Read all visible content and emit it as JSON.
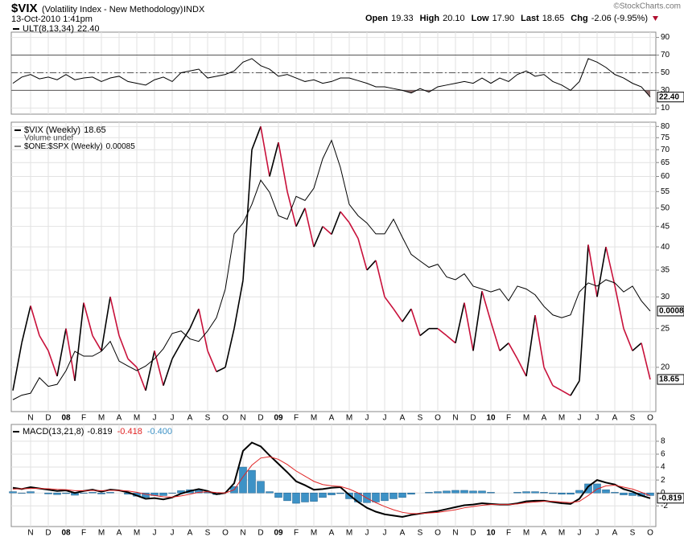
{
  "header": {
    "symbol": "$VIX",
    "name": "(Volatility Index - New Methodology)",
    "exchange": "INDX",
    "timestamp": "13-Oct-2010 1:41pm",
    "quote": [
      {
        "label": "Open",
        "value": "19.33"
      },
      {
        "label": "High",
        "value": "20.10"
      },
      {
        "label": "Low",
        "value": "17.90"
      },
      {
        "label": "Last",
        "value": "18.65"
      },
      {
        "label": "Chg",
        "value": "-2.06 (-9.95%)"
      }
    ],
    "watermark": "©StockCharts.com"
  },
  "chart_data": [
    {
      "type": "line",
      "ylim": [
        3,
        96
      ],
      "yticks": [
        10,
        30,
        50,
        70,
        90
      ],
      "levels": [
        30,
        50,
        70
      ],
      "grid": true,
      "series": [
        {
          "name": "ULT(8,13,34)",
          "color": "#000000",
          "fill_below": 30,
          "fill_color": "#8c6d6d",
          "last_label": "22.40",
          "values": [
            38,
            45,
            48,
            43,
            45,
            42,
            48,
            42,
            44,
            45,
            40,
            44,
            46,
            40,
            38,
            36,
            42,
            45,
            40,
            50,
            52,
            54,
            44,
            46,
            48,
            52,
            62,
            66,
            58,
            54,
            46,
            48,
            44,
            40,
            42,
            38,
            40,
            44,
            44,
            41,
            38,
            34,
            34,
            32,
            30,
            27,
            32,
            28,
            34,
            36,
            38,
            40,
            38,
            44,
            38,
            44,
            40,
            48,
            52,
            46,
            48,
            40,
            36,
            30,
            40,
            66,
            62,
            56,
            48,
            44,
            38,
            34,
            22.4
          ]
        }
      ]
    },
    {
      "type": "line",
      "log": true,
      "ylim": [
        15.5,
        82
      ],
      "yticks": [
        20,
        25,
        30,
        35,
        40,
        45,
        50,
        55,
        60,
        65,
        70,
        75,
        80
      ],
      "y2lim": [
        0.000626,
        0.00151
      ],
      "grid": true,
      "volume_note": "Volume undef",
      "categories": [
        null,
        null,
        "N",
        null,
        "D",
        null,
        "08",
        null,
        "F",
        null,
        "M",
        null,
        "A",
        null,
        "M",
        null,
        "J",
        null,
        "J",
        null,
        "A",
        null,
        "S",
        null,
        "O",
        null,
        "N",
        null,
        "D",
        null,
        "09",
        null,
        "F",
        null,
        "M",
        null,
        "A",
        null,
        "M",
        null,
        "J",
        null,
        "J",
        null,
        "A",
        null,
        "S",
        null,
        "O",
        null,
        "N",
        null,
        "D",
        null,
        "10",
        null,
        "F",
        null,
        "M",
        null,
        "A",
        null,
        "M",
        null,
        "J",
        null,
        "J",
        null,
        "A",
        null,
        "S",
        null,
        "O"
      ],
      "series": [
        {
          "name": "$VIX (Weekly)",
          "color": "#000000",
          "down_color": "#c8103a",
          "values": [
            17.5,
            23,
            28.5,
            24,
            22,
            19,
            25,
            18.5,
            29,
            24,
            22,
            30,
            24,
            21,
            20,
            17.5,
            22,
            18,
            21,
            23,
            25,
            28,
            22,
            19.5,
            20,
            25,
            33,
            70,
            80,
            60,
            73,
            55,
            45,
            50,
            40,
            45,
            43,
            49,
            46,
            42,
            35,
            37,
            30,
            28,
            26,
            28,
            24,
            25,
            25,
            24,
            23,
            29,
            22,
            31,
            26,
            22,
            23,
            21,
            19,
            27,
            20,
            18,
            17.5,
            17,
            18.5,
            40.5,
            30,
            40,
            32,
            25,
            22,
            23,
            18.65
          ]
        },
        {
          "name": "$ONE:$SPX (Weekly)",
          "color": "#000000",
          "axis": "y2",
          "last_label": "0.0008",
          "values": [
            0.000649,
            0.000658,
            0.000662,
            0.000694,
            0.000676,
            0.00068,
            0.000709,
            0.000752,
            0.000741,
            0.000741,
            0.000752,
            0.000775,
            0.00073,
            0.000719,
            0.000709,
            0.000719,
            0.000735,
            0.000758,
            0.000794,
            0.0008,
            0.000781,
            0.000775,
            0.0008,
            0.000833,
            0.000909,
            0.001075,
            0.001111,
            0.001176,
            0.001266,
            0.00122,
            0.001136,
            0.001124,
            0.001205,
            0.00119,
            0.001235,
            0.001351,
            0.001429,
            0.001316,
            0.001176,
            0.001136,
            0.001111,
            0.001075,
            0.001075,
            0.001124,
            0.001064,
            0.00101,
            0.00099,
            0.000971,
            0.00098,
            0.000943,
            0.000935,
            0.000952,
            0.000917,
            0.000909,
            0.000901,
            0.000909,
            0.000877,
            0.000917,
            0.000909,
            0.000893,
            0.000862,
            0.00084,
            0.000833,
            0.00084,
            0.000901,
            0.000926,
            0.000917,
            0.000935,
            0.000926,
            0.000901,
            0.000917,
            0.000877,
            0.00085
          ]
        }
      ]
    },
    {
      "type": "line",
      "title": "MACD(13,21,8)",
      "ylim": [
        -5.2,
        10.6
      ],
      "yticks": [
        8,
        6,
        4,
        2,
        0,
        -2
      ],
      "grid": true,
      "categories": [
        null,
        null,
        "N",
        null,
        "D",
        null,
        "08",
        null,
        "F",
        null,
        "M",
        null,
        "A",
        null,
        "M",
        null,
        "J",
        null,
        "J",
        null,
        "A",
        null,
        "S",
        null,
        "O",
        null,
        "N",
        null,
        "D",
        null,
        "09",
        null,
        "F",
        null,
        "M",
        null,
        "A",
        null,
        "M",
        null,
        "J",
        null,
        "J",
        null,
        "A",
        null,
        "S",
        null,
        "O",
        null,
        "N",
        null,
        "D",
        null,
        "10",
        null,
        "F",
        null,
        "M",
        null,
        "A",
        null,
        "M",
        null,
        "J",
        null,
        "J",
        null,
        "A",
        null,
        "S",
        null,
        "O"
      ],
      "series": [
        {
          "type": "bar",
          "color": "#3d92c6",
          "last_label": "-0.400",
          "values": [
            0.2,
            -0.05,
            0.2,
            0,
            -0.15,
            -0.25,
            -0.1,
            -0.35,
            -0.05,
            0.1,
            -0.15,
            0.1,
            0,
            -0.2,
            -0.5,
            -0.7,
            -0.4,
            -0.4,
            -0.05,
            0.35,
            0.5,
            0.5,
            0.1,
            -0.25,
            0,
            1.0,
            4.0,
            3.5,
            1.8,
            0.2,
            -0.7,
            -1.2,
            -1.6,
            -1.4,
            -1.3,
            -0.7,
            -0.3,
            -0.1,
            -0.9,
            -1.4,
            -1.5,
            -1.4,
            -1.2,
            -0.9,
            -0.7,
            -0.2,
            0,
            0.1,
            0.2,
            0.3,
            0.4,
            0.4,
            0.3,
            0.3,
            0.1,
            0,
            0,
            0.1,
            0.2,
            0.2,
            0.1,
            -0.1,
            -0.2,
            -0.2,
            0.4,
            1.4,
            1.4,
            0.5,
            0.1,
            -0.3,
            -0.4,
            -0.5,
            -0.4
          ]
        },
        {
          "type": "line",
          "color": "#000000",
          "width": 2,
          "values": [
            0.8,
            0.6,
            0.9,
            0.7,
            0.5,
            0.3,
            0.4,
            0,
            0.3,
            0.5,
            0.2,
            0.5,
            0.4,
            0.1,
            -0.4,
            -0.9,
            -0.8,
            -1.0,
            -0.7,
            -0.1,
            0.3,
            0.6,
            0.3,
            -0.2,
            0,
            1.5,
            6.5,
            7.8,
            7.2,
            5.8,
            4.5,
            3.2,
            1.8,
            1.2,
            0.5,
            0.6,
            0.8,
            0.9,
            -0.3,
            -1.4,
            -2.3,
            -2.9,
            -3.3,
            -3.5,
            -3.7,
            -3.4,
            -3.2,
            -3.0,
            -2.8,
            -2.5,
            -2.2,
            -1.9,
            -1.8,
            -1.6,
            -1.7,
            -1.8,
            -1.8,
            -1.6,
            -1.3,
            -1.2,
            -1.2,
            -1.4,
            -1.6,
            -1.7,
            -0.9,
            1.0,
            2.0,
            1.6,
            1.3,
            0.6,
            0.2,
            -0.4,
            -0.819
          ]
        },
        {
          "type": "line",
          "color": "#e02424",
          "width": 1,
          "values": [
            0.6,
            0.65,
            0.7,
            0.7,
            0.65,
            0.55,
            0.5,
            0.35,
            0.35,
            0.4,
            0.35,
            0.4,
            0.4,
            0.3,
            0.1,
            -0.2,
            -0.4,
            -0.6,
            -0.65,
            -0.45,
            -0.2,
            0.1,
            0.2,
            0.05,
            0,
            0.5,
            2.5,
            4.3,
            5.4,
            5.6,
            5.2,
            4.4,
            3.4,
            2.6,
            1.8,
            1.3,
            1.1,
            1.0,
            0.6,
            0.0,
            -0.8,
            -1.5,
            -2.1,
            -2.6,
            -3.0,
            -3.2,
            -3.2,
            -3.1,
            -3.0,
            -2.8,
            -2.6,
            -2.3,
            -2.1,
            -1.9,
            -1.8,
            -1.8,
            -1.8,
            -1.7,
            -1.5,
            -1.4,
            -1.3,
            -1.3,
            -1.4,
            -1.5,
            -1.3,
            -0.4,
            0.6,
            1.1,
            1.2,
            0.9,
            0.6,
            0.1,
            -0.418
          ]
        }
      ]
    }
  ]
}
